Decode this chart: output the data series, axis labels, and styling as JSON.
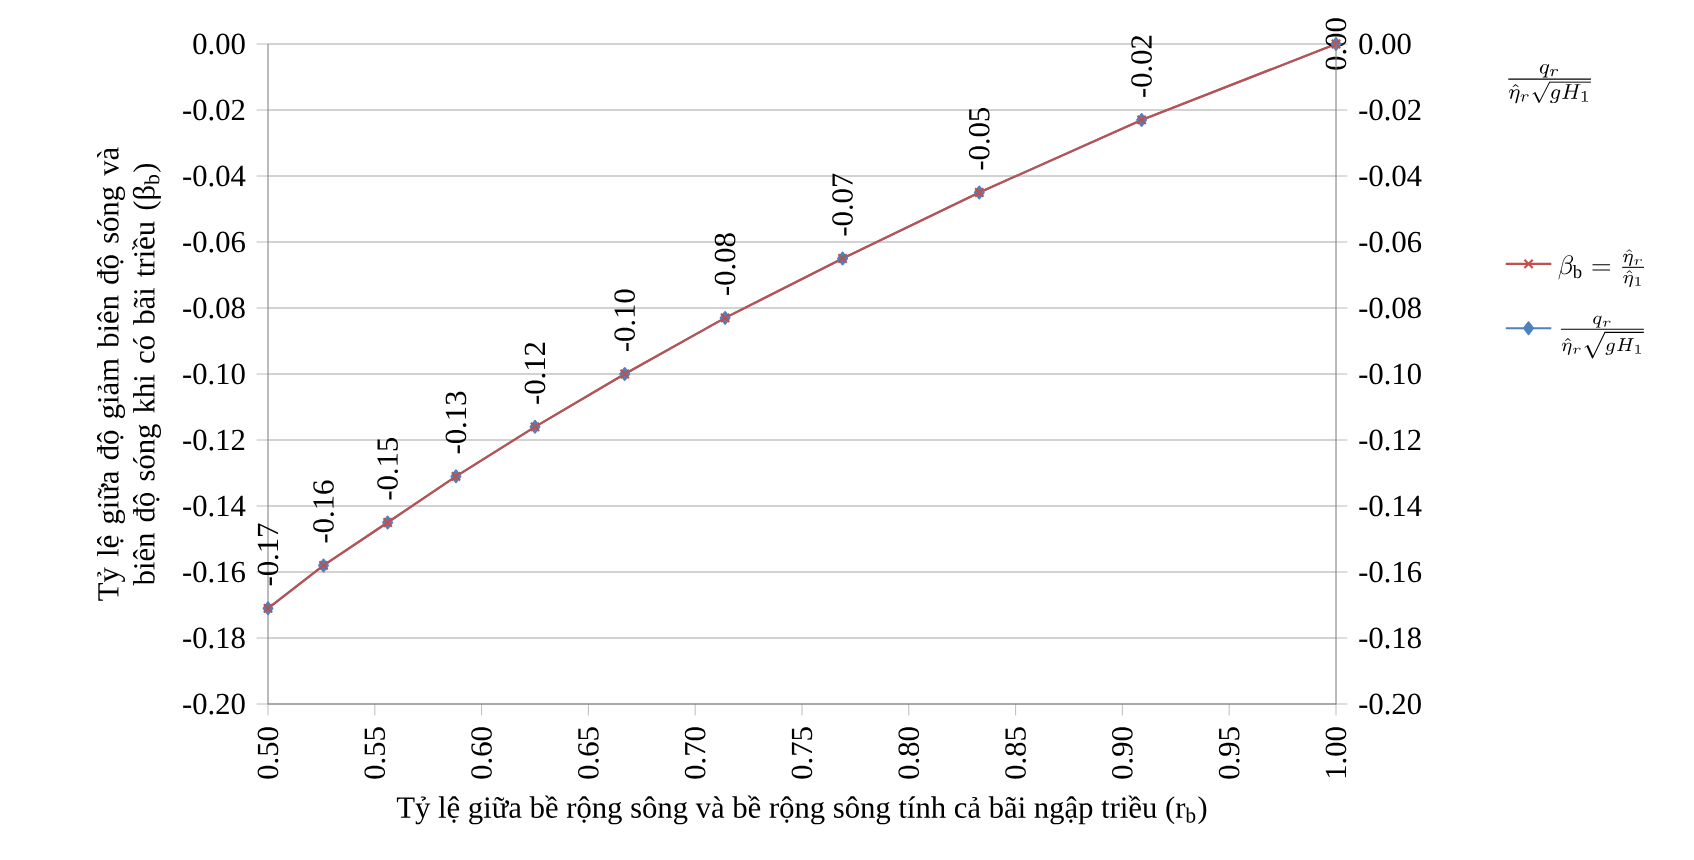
{
  "chart_data": {
    "type": "line",
    "xlabel": "Tỷ lệ giữa bề rộng sông và bề rộng sông tính cả bãi ngập triều (r$_{b}$)",
    "ylabel": "Tỷ lệ giữa độ giảm biên độ sóng và biên độ sóng khi có bãi triều (β$_{b}$)",
    "y2label": "\\frac{q_r}{\\hat{\\eta}_r \\sqrt{gH_1}}",
    "x": [
      0.5,
      0.526,
      0.556,
      0.588,
      0.625,
      0.667,
      0.714,
      0.769,
      0.833,
      0.909,
      1.0
    ],
    "series": [
      {
        "name": "\\beta_{\\mathrm{b}} = \\frac{\\hat{\\eta}_r}{\\hat{\\eta}_1}",
        "color": "#c0504d",
        "marker": "cross",
        "values": [
          -0.171,
          -0.158,
          -0.145,
          -0.131,
          -0.116,
          -0.1,
          -0.083,
          -0.065,
          -0.045,
          -0.023,
          0.0
        ],
        "value_labels": [
          "-0.17",
          "-0.16",
          "-0.15",
          "-0.13",
          "-0.12",
          "-0.10",
          "-0.08",
          "-0.07",
          "-0.05",
          "-0.02",
          "0.00"
        ]
      },
      {
        "name": "\\frac{q_r}{\\hat{\\eta}_r \\sqrt{gH_1}}",
        "color": "#4f81bd",
        "marker": "diamond",
        "values": [
          -0.171,
          -0.158,
          -0.145,
          -0.131,
          -0.116,
          -0.1,
          -0.083,
          -0.065,
          -0.045,
          -0.023,
          0.0
        ]
      }
    ],
    "xlim": [
      0.5,
      1.0
    ],
    "xticks": [
      {
        "value": 0.5,
        "label": "0.50"
      },
      {
        "value": 0.55,
        "label": "0.55"
      },
      {
        "value": 0.6,
        "label": "0.60"
      },
      {
        "value": 0.65,
        "label": "0.65"
      },
      {
        "value": 0.7,
        "label": "0.70"
      },
      {
        "value": 0.75,
        "label": "0.75"
      },
      {
        "value": 0.8,
        "label": "0.80"
      },
      {
        "value": 0.85,
        "label": "0.85"
      },
      {
        "value": 0.9,
        "label": "0.90"
      },
      {
        "value": 0.95,
        "label": "0.95"
      },
      {
        "value": 1.0,
        "label": "1.00"
      }
    ],
    "ylim": [
      -0.2,
      0.0
    ],
    "yticks": [
      {
        "value": -0.2,
        "label": "-0.20"
      },
      {
        "value": -0.18,
        "label": "-0.18"
      },
      {
        "value": -0.16,
        "label": "-0.16"
      },
      {
        "value": -0.14,
        "label": "-0.14"
      },
      {
        "value": -0.12,
        "label": "-0.12"
      },
      {
        "value": -0.1,
        "label": "-0.10"
      },
      {
        "value": -0.08,
        "label": "-0.08"
      },
      {
        "value": -0.06,
        "label": "-0.06"
      },
      {
        "value": -0.04,
        "label": "-0.04"
      },
      {
        "value": -0.02,
        "label": "-0.02"
      },
      {
        "value": 0.0,
        "label": "0.00"
      }
    ],
    "y2lim": [
      -0.2,
      0.0
    ],
    "y2ticks": [
      {
        "value": -0.2,
        "label": "-0.20"
      },
      {
        "value": -0.18,
        "label": "-0.18"
      },
      {
        "value": -0.16,
        "label": "-0.16"
      },
      {
        "value": -0.14,
        "label": "-0.14"
      },
      {
        "value": -0.12,
        "label": "-0.12"
      },
      {
        "value": -0.1,
        "label": "-0.10"
      },
      {
        "value": -0.08,
        "label": "-0.08"
      },
      {
        "value": -0.06,
        "label": "-0.06"
      },
      {
        "value": -0.04,
        "label": "-0.04"
      },
      {
        "value": -0.02,
        "label": "-0.02"
      },
      {
        "value": 0.0,
        "label": "0.00"
      }
    ],
    "grid": "y",
    "legend": "right"
  }
}
